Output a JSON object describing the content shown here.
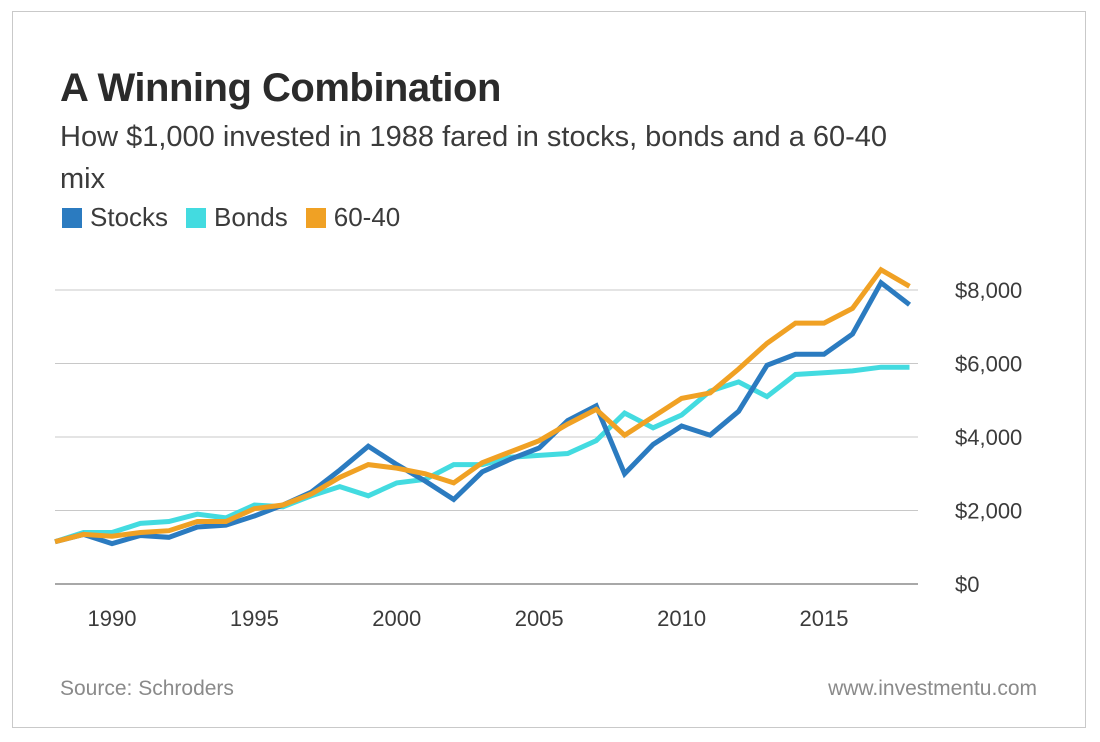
{
  "chart_data": {
    "type": "line",
    "title": "A Winning Combination",
    "subtitle": "How $1,000 invested in 1988 fared in stocks, bonds and a 60-40 mix",
    "xlabel": "",
    "ylabel": "",
    "x": [
      1988,
      1989,
      1990,
      1991,
      1992,
      1993,
      1994,
      1995,
      1996,
      1997,
      1998,
      1999,
      2000,
      2001,
      2002,
      2003,
      2004,
      2005,
      2006,
      2007,
      2008,
      2009,
      2010,
      2011,
      2012,
      2013,
      2014,
      2015,
      2016,
      2017,
      2018
    ],
    "series": [
      {
        "name": "Stocks",
        "color": "#2b7bc0",
        "values": [
          1150,
          1350,
          1100,
          1320,
          1270,
          1550,
          1600,
          1850,
          2150,
          2500,
          3100,
          3750,
          3250,
          2800,
          2300,
          3050,
          3400,
          3700,
          4450,
          4850,
          3000,
          3800,
          4300,
          4050,
          4700,
          5950,
          6250,
          6250,
          6800,
          8200,
          7600
        ]
      },
      {
        "name": "Bonds",
        "color": "#43dbe0",
        "values": [
          1150,
          1400,
          1400,
          1650,
          1700,
          1900,
          1800,
          2150,
          2100,
          2400,
          2650,
          2400,
          2750,
          2850,
          3250,
          3250,
          3450,
          3500,
          3550,
          3900,
          4650,
          4250,
          4600,
          5250,
          5500,
          5100,
          5700,
          5750,
          5800,
          5900,
          5900
        ]
      },
      {
        "name": "60-40",
        "color": "#f0a124",
        "values": [
          1150,
          1350,
          1300,
          1400,
          1450,
          1700,
          1700,
          2050,
          2150,
          2450,
          2900,
          3250,
          3150,
          3000,
          2750,
          3300,
          3600,
          3900,
          4350,
          4750,
          4050,
          4550,
          5050,
          5200,
          5850,
          6550,
          7100,
          7100,
          7500,
          8550,
          8100
        ]
      }
    ],
    "xticks": [
      "1990",
      "1995",
      "2000",
      "2005",
      "2010",
      "2015"
    ],
    "xtick_values": [
      1990,
      1995,
      2000,
      2005,
      2010,
      2015
    ],
    "yticks": [
      "$0",
      "$2,000",
      "$4,000",
      "$6,000",
      "$8,000"
    ],
    "ytick_values": [
      0,
      2000,
      4000,
      6000,
      8000
    ],
    "ylim": [
      0,
      8000
    ],
    "xlim": [
      1988,
      2018.3
    ],
    "grid": "horizontal",
    "legend": "top-left",
    "y_axis_side": "right"
  },
  "footer": {
    "source": "Source: Schroders",
    "site": "www.investmentu.com"
  }
}
